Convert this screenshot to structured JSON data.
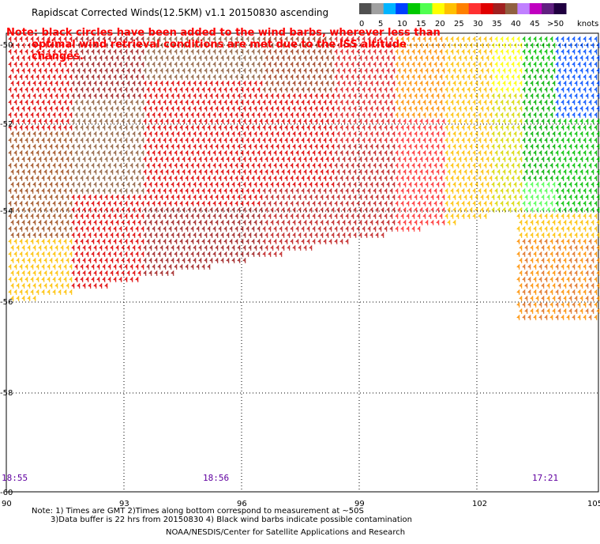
{
  "title": "Rapidscat Corrected Winds(12.5KM) v1.1 20150830 ascending",
  "colorbar": {
    "units": "knots",
    "segments": [
      "#505050",
      "#a0a0a0",
      "#00b4ff",
      "#0040ff",
      "#00c800",
      "#50ff50",
      "#ffff00",
      "#ffc000",
      "#ff8000",
      "#ff3030",
      "#e00000",
      "#a02020",
      "#906040",
      "#c080ff",
      "#c000c0",
      "#602080",
      "#200040"
    ],
    "labels": [
      "0",
      "5",
      "10",
      "15",
      "20",
      "25",
      "30",
      "35",
      "40",
      "45",
      ">50"
    ]
  },
  "note_lines": [
    "Note: black circles have been added to the wind barbs, wherever less than",
    "optimal wind retrieval conditions are met due to the ISS altitude changes."
  ],
  "axes": {
    "lon_labels": [
      "90",
      "93",
      "96",
      "99",
      "102",
      "105"
    ],
    "lat_labels": [
      "-50",
      "-52",
      "-54",
      "-56",
      "-58",
      "-60"
    ]
  },
  "time_labels": [
    {
      "text": "18:55",
      "color": "#6000a0"
    },
    {
      "text": "18:56",
      "color": "#6000a0"
    },
    {
      "text": "17:21",
      "color": "#6000a0"
    }
  ],
  "footer": {
    "line1": "Note: 1) Times are GMT 2)Times along bottom correspond to measurement at ~50S",
    "line2": "3)Data buffer is 22 hrs from 20150830 4) Black wind barbs indicate possible contamination",
    "credit": "NOAA/NESDIS/Center for Satellite Applications and Research"
  }
}
